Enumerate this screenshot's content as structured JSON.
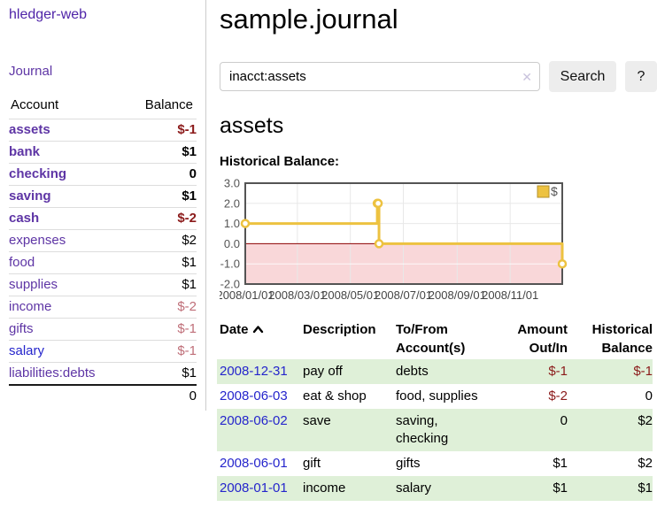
{
  "app": {
    "brand": "hledger-web"
  },
  "colors": {
    "purple_link": "#5e35a5",
    "brand_purple": "#4f24a8",
    "blue_link": "#2525cc",
    "negative_red": "#8b1a1a",
    "muted_negative": "#bf6e78",
    "row_green": "#dff0d8",
    "series_gold": "#edc240",
    "negative_band_pink": "#f9d7d9",
    "zero_line_red": "#8b0000"
  },
  "sidebar": {
    "nav_journal": "Journal",
    "table": {
      "col_account": "Account",
      "col_balance": "Balance"
    },
    "accounts": [
      {
        "name": "assets",
        "indent": 1,
        "bold": true,
        "balance": "$-1",
        "balance_style": "negative"
      },
      {
        "name": "bank",
        "indent": 2,
        "bold": true,
        "balance": "$1",
        "balance_style": "normal"
      },
      {
        "name": "checking",
        "indent": 3,
        "bold": true,
        "balance": "0",
        "balance_style": "normal"
      },
      {
        "name": "saving",
        "indent": 3,
        "bold": true,
        "balance": "$1",
        "balance_style": "normal"
      },
      {
        "name": "cash",
        "indent": 2,
        "bold": true,
        "balance": "$-2",
        "balance_style": "negative"
      },
      {
        "name": "expenses",
        "indent": 1,
        "bold": false,
        "balance": "$2",
        "balance_style": "normal"
      },
      {
        "name": "food",
        "indent": 2,
        "bold": false,
        "balance": "$1",
        "balance_style": "normal"
      },
      {
        "name": "supplies",
        "indent": 2,
        "bold": false,
        "balance": "$1",
        "balance_style": "normal"
      },
      {
        "name": "income",
        "indent": 1,
        "bold": false,
        "balance": "$-2",
        "balance_style": "muted"
      },
      {
        "name": "gifts",
        "indent": 2,
        "bold": false,
        "balance": "$-1",
        "balance_style": "muted"
      },
      {
        "name": "salary",
        "indent": 2,
        "bold": false,
        "balance": "$-1",
        "balance_style": "muted",
        "link_style": "blue"
      },
      {
        "name": "liabilities:debts",
        "indent": 1,
        "bold": false,
        "balance": "$1",
        "balance_style": "normal"
      }
    ],
    "total": "0"
  },
  "header": {
    "title": "sample.journal"
  },
  "search": {
    "value": "inacct:assets",
    "clear_label": "✕",
    "button_label": "Search",
    "help_label": "?"
  },
  "account_page": {
    "heading": "assets",
    "chart_title": "Historical Balance:"
  },
  "chart_data": {
    "type": "line",
    "style": "step",
    "title": "Historical Balance:",
    "series": [
      {
        "name": "$",
        "color": "#edc240",
        "points": [
          [
            "2008-01-01",
            1
          ],
          [
            "2008-06-01",
            2
          ],
          [
            "2008-06-02",
            2
          ],
          [
            "2008-06-03",
            0
          ],
          [
            "2008-12-31",
            -1
          ]
        ]
      }
    ],
    "x_range": [
      "2008-01-01",
      "2008-12-31"
    ],
    "ylim": [
      -2,
      3
    ],
    "x_ticks": [
      "2008/01/01",
      "2008/03/01",
      "2008/05/01",
      "2008/07/01",
      "2008/09/01",
      "2008/11/01"
    ],
    "y_ticks": [
      3,
      2,
      1,
      0,
      -1,
      -2
    ],
    "grid": true,
    "legend": {
      "label": "$",
      "position": "top-right"
    },
    "negative_region_color": "#f9d7d9",
    "zero_line_color": "#8b0000"
  },
  "register": {
    "headers": [
      "Date",
      "Description",
      "To/From Account(s)",
      "Amount Out/In",
      "Historical Balance"
    ],
    "rows": [
      {
        "date": "2008-12-31",
        "description": "pay off",
        "accounts": "debts",
        "amount": "$-1",
        "balance": "$-1"
      },
      {
        "date": "2008-06-03",
        "description": "eat & shop",
        "accounts": "food, supplies",
        "amount": "$-2",
        "balance": "0"
      },
      {
        "date": "2008-06-02",
        "description": "save",
        "accounts": "saving, checking",
        "amount": "0",
        "balance": "$2"
      },
      {
        "date": "2008-06-01",
        "description": "gift",
        "accounts": "gifts",
        "amount": "$1",
        "balance": "$2"
      },
      {
        "date": "2008-01-01",
        "description": "income",
        "accounts": "salary",
        "amount": "$1",
        "balance": "$1"
      }
    ]
  }
}
